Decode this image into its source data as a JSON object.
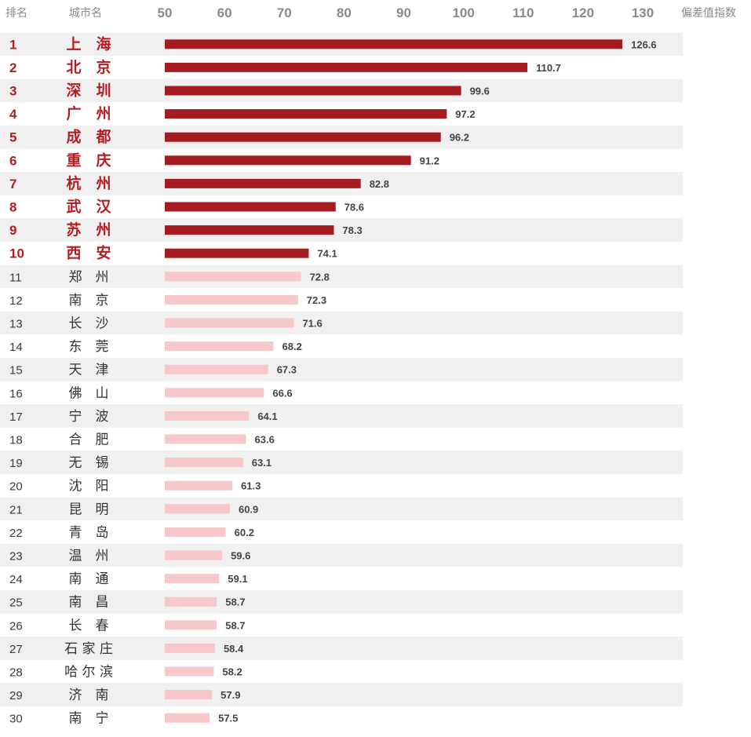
{
  "header": {
    "rank_label": "排名",
    "city_label": "城市名",
    "index_label": "偏差值指数"
  },
  "chart_data": {
    "type": "bar",
    "orientation": "horizontal",
    "xlim": [
      50,
      130
    ],
    "xticks": [
      50,
      60,
      70,
      80,
      90,
      100,
      110,
      120,
      130
    ],
    "ranks": [
      "1",
      "2",
      "3",
      "4",
      "5",
      "6",
      "7",
      "8",
      "9",
      "10",
      "11",
      "12",
      "13",
      "14",
      "15",
      "16",
      "17",
      "18",
      "19",
      "20",
      "21",
      "22",
      "23",
      "24",
      "25",
      "26",
      "27",
      "28",
      "29",
      "30"
    ],
    "categories": [
      "上　海",
      "北　京",
      "深　圳",
      "广　州",
      "成　都",
      "重　庆",
      "杭　州",
      "武　汉",
      "苏　州",
      "西　安",
      "郑　州",
      "南　京",
      "长　沙",
      "东　莞",
      "天　津",
      "佛　山",
      "宁　波",
      "合　肥",
      "无　锡",
      "沈　阳",
      "昆　明",
      "青　岛",
      "温　州",
      "南　通",
      "南　昌",
      "长　春",
      "石 家 庄",
      "哈 尔 滨",
      "济　南",
      "南　宁"
    ],
    "values": [
      126.6,
      110.7,
      99.6,
      97.2,
      96.2,
      91.2,
      82.8,
      78.6,
      78.3,
      74.1,
      72.8,
      72.3,
      71.6,
      68.2,
      67.3,
      66.6,
      64.1,
      63.6,
      63.1,
      61.3,
      60.9,
      60.2,
      59.6,
      59.1,
      58.7,
      58.7,
      58.4,
      58.2,
      57.9,
      57.5
    ],
    "value_labels": [
      "126.6",
      "110.7",
      "99.6",
      "97.2",
      "96.2",
      "91.2",
      "82.8",
      "78.6",
      "78.3",
      "74.1",
      "72.8",
      "72.3",
      "71.6",
      "68.2",
      "67.3",
      "66.6",
      "64.1",
      "63.6",
      "63.1",
      "61.3",
      "60.9",
      "60.2",
      "59.6",
      "59.1",
      "58.7",
      "58.7",
      "58.4",
      "58.2",
      "57.9",
      "57.5"
    ],
    "highlight_count": 10,
    "colors": {
      "top": "#a51b1f",
      "rest": "#f6c8ca",
      "rank_top_text": "#b01e23",
      "stripe": "#f0f0f0"
    },
    "grid": false
  }
}
